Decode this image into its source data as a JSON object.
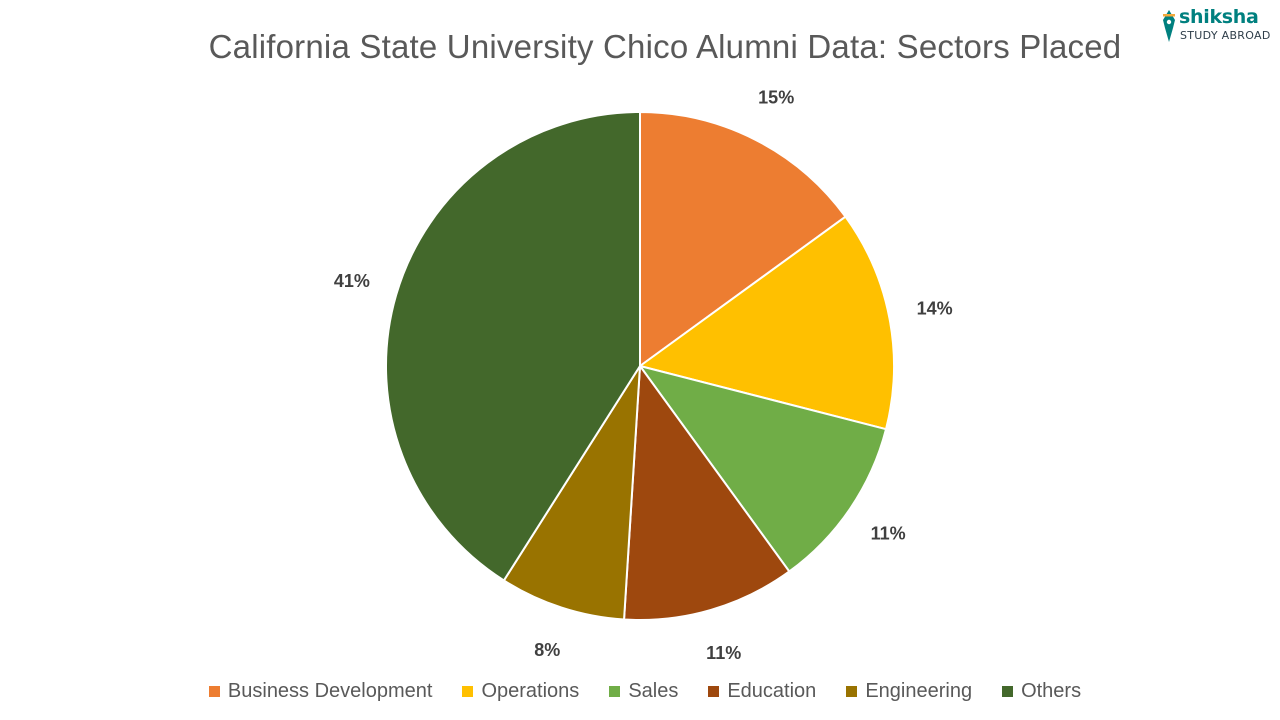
{
  "chart_data": {
    "type": "pie",
    "title": "California State University Chico Alumni Data: Sectors Placed",
    "slices": [
      {
        "label": "Business Development",
        "value": 15,
        "display": "15%",
        "color": "#ED7D31"
      },
      {
        "label": "Operations",
        "value": 14,
        "display": "14%",
        "color": "#FFC000"
      },
      {
        "label": "Sales",
        "value": 11,
        "display": "11%",
        "color": "#70AD47"
      },
      {
        "label": "Education",
        "value": 11,
        "display": "11%",
        "color": "#9E480E"
      },
      {
        "label": "Engineering",
        "value": 8,
        "display": "8%",
        "color": "#997300"
      },
      {
        "label": "Others",
        "value": 41,
        "display": "41%",
        "color": "#43682B"
      }
    ],
    "legend_position": "bottom",
    "start_angle": "12 o'clock",
    "direction": "clockwise"
  },
  "logo": {
    "brand": "shiksha",
    "tagline": "STUDY ABROAD"
  }
}
